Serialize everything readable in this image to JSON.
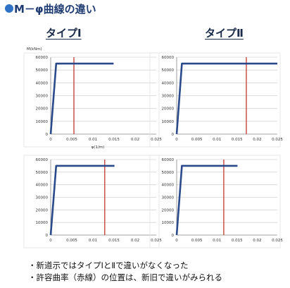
{
  "title": "M－φ曲線の違い",
  "headings": [
    "タイプⅠ",
    "タイプⅡ"
  ],
  "notes": [
    "・新道示ではタイプⅠとⅡで違いがなくなった",
    "・許容曲率（赤線）の位置は、新旧で違いがみられる"
  ],
  "colors": {
    "curve": "#2a4a8c",
    "limit": "#c0392b",
    "grid": "#d4d4d4",
    "title": "#1f3c73",
    "bullet": "#2f72c6"
  },
  "chart_data": [
    {
      "type": "line",
      "ylabel": "M(kNm)",
      "xlabel": "φ(1/m)",
      "xticks": [
        "0",
        "0.005",
        "0.01",
        "0.015",
        "0.02",
        "0.025"
      ],
      "yticks": [
        "0",
        "10000",
        "20000",
        "30000",
        "40000",
        "50000",
        "60000"
      ],
      "xlim": [
        0,
        0.025
      ],
      "ylim": [
        0,
        60000
      ],
      "grid": true,
      "series": [
        {
          "x": [
            0,
            0.0013,
            0.0149
          ],
          "y": [
            0,
            55000,
            55000
          ]
        }
      ],
      "vline": 0.0055
    },
    {
      "type": "line",
      "ylabel": "",
      "xlabel": "",
      "xticks": [
        "0",
        "0.005",
        "0.01",
        "0.015",
        "0.02",
        "0.025"
      ],
      "yticks": [
        "0",
        "10000",
        "20000",
        "30000",
        "40000",
        "50000",
        "60000"
      ],
      "xlim": [
        0,
        0.025
      ],
      "ylim": [
        0,
        60000
      ],
      "grid": true,
      "series": [
        {
          "x": [
            0,
            0.0013,
            0.025
          ],
          "y": [
            0,
            55000,
            55000
          ]
        }
      ],
      "vline": 0.0173
    },
    {
      "type": "line",
      "ylabel": "",
      "xlabel": "",
      "xticks": [
        "0",
        "0.005",
        "0.01",
        "0.015",
        "0.02",
        "0.025"
      ],
      "yticks": [
        "0",
        "10000",
        "20000",
        "30000",
        "40000",
        "50000",
        "60000"
      ],
      "xlim": [
        0,
        0.025
      ],
      "ylim": [
        0,
        60000
      ],
      "grid": true,
      "series": [
        {
          "x": [
            0,
            0.0013,
            0.0151
          ],
          "y": [
            0,
            55000,
            55000
          ]
        }
      ],
      "vline": 0.0128
    },
    {
      "type": "line",
      "ylabel": "",
      "xlabel": "",
      "xticks": [
        "0",
        "0.005",
        "0.01",
        "0.015",
        "0.02",
        "0.025"
      ],
      "yticks": [
        "0",
        "10000",
        "20000",
        "30000",
        "40000",
        "50000",
        "60000"
      ],
      "xlim": [
        0,
        0.025
      ],
      "ylim": [
        0,
        60000
      ],
      "grid": true,
      "series": [
        {
          "x": [
            0,
            0.0013,
            0.0151
          ],
          "y": [
            0,
            55000,
            55000
          ]
        }
      ],
      "vline": 0.0117
    }
  ]
}
